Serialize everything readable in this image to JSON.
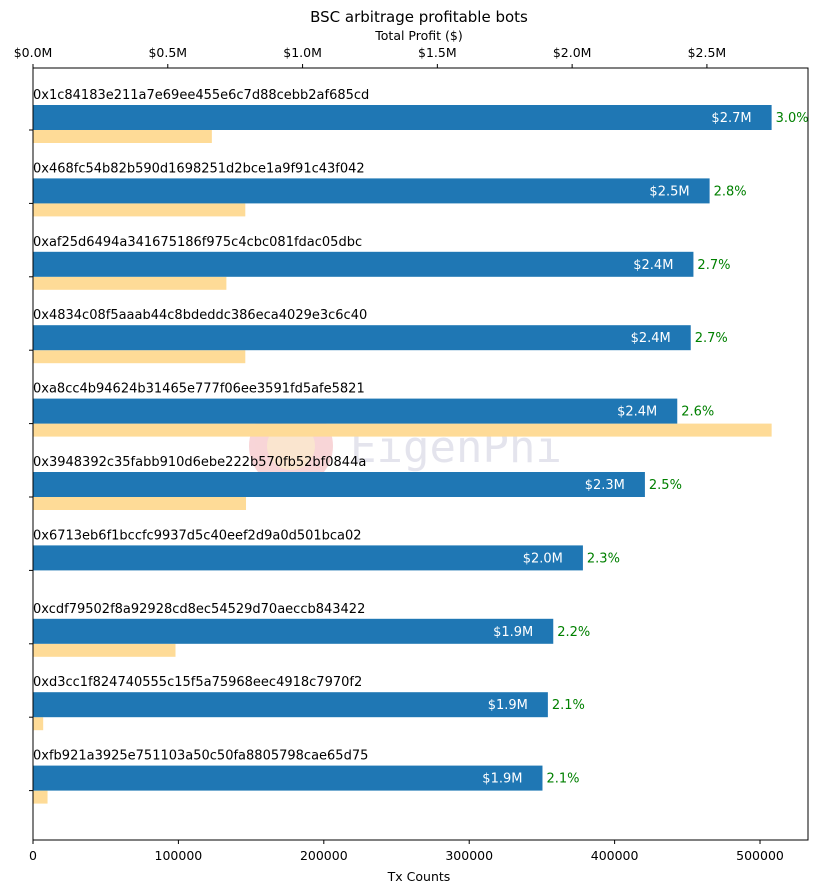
{
  "chart_data": {
    "type": "bar",
    "orientation": "horizontal",
    "title": "BSC arbitrage profitable bots",
    "top_axis_label": "Total Profit ($)",
    "bottom_axis_label": "Tx Counts",
    "top_axis_ticks": [
      "$0.0M",
      "$0.5M",
      "$1.0M",
      "$1.5M",
      "$2.0M",
      "$2.5M"
    ],
    "top_axis_tick_values": [
      0,
      0.5,
      1.0,
      1.5,
      2.0,
      2.5
    ],
    "top_axis_range": [
      0,
      2.875
    ],
    "bottom_axis_ticks": [
      "0",
      "100000",
      "200000",
      "300000",
      "400000",
      "500000"
    ],
    "bottom_axis_tick_values": [
      0,
      100000,
      200000,
      300000,
      400000,
      500000
    ],
    "bottom_axis_range": [
      0,
      533000
    ],
    "colors": {
      "profit": "#1f77b4",
      "tx_count": "#fedb97",
      "percent": "#008000"
    },
    "watermark": "EigenPhi",
    "categories": [
      "0x1c84183e211a7e69ee455e6c7d88cebb2af685cd",
      "0x468fc54b82b590d1698251d2bce1a9f91c43f042",
      "0xaf25d6494a341675186f975c4cbc081fdac05dbc",
      "0x4834c08f5aaab44c8bdeddc386eca4029e3c6c40",
      "0xa8cc4b94624b31465e777f06ee3591fd5afe5821",
      "0x3948392c35fabb910d6ebe222b570fb52bf0844a",
      "0x6713eb6f1bccfc9937d5c40eef2d9a0d501bca02",
      "0xcdf79502f8a92928cd8ec54529d70aeccb843422",
      "0xd3cc1f824740555c15f5a75968eec4918c7970f2",
      "0xfb921a3925e751103a50c50fa8805798cae65d75"
    ],
    "series": [
      {
        "name": "Total Profit ($M)",
        "values": [
          2.74,
          2.51,
          2.45,
          2.44,
          2.39,
          2.27,
          2.04,
          1.93,
          1.91,
          1.89
        ],
        "labels": [
          "$2.7M",
          "$2.5M",
          "$2.4M",
          "$2.4M",
          "$2.4M",
          "$2.3M",
          "$2.0M",
          "$1.9M",
          "$1.9M",
          "$1.9M"
        ],
        "percent_labels": [
          "3.0%",
          "2.8%",
          "2.7%",
          "2.7%",
          "2.6%",
          "2.5%",
          "2.3%",
          "2.2%",
          "2.1%",
          "2.1%"
        ]
      },
      {
        "name": "Tx Counts",
        "values": [
          123000,
          146000,
          133000,
          146000,
          508000,
          146500,
          0,
          98000,
          7000,
          10000
        ]
      }
    ]
  }
}
